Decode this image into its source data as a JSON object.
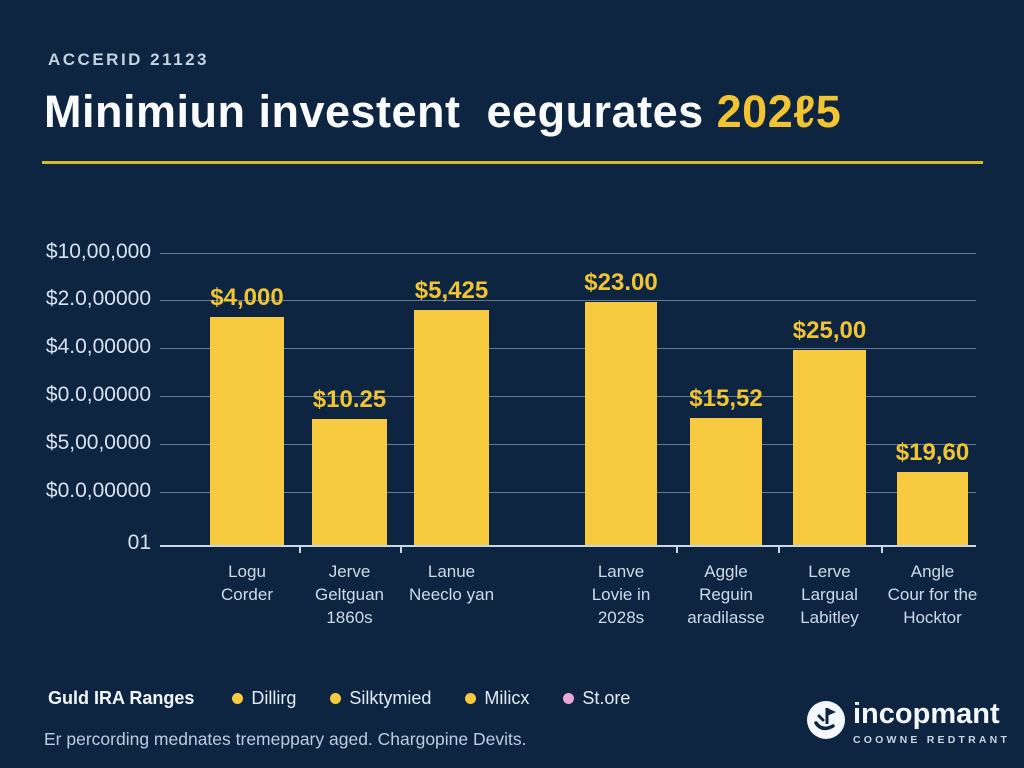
{
  "colors": {
    "background": "#0E2541",
    "bar": "#F8CA40",
    "accent_yellow": "#F2C431",
    "rule_gold": "#D9B92B",
    "legend_pink": "#E8A7D9",
    "text_light": "#D8E2EE"
  },
  "header": {
    "eyebrow": "ACCERID 21123",
    "title": "Minimiun investent  eegurates ",
    "title_accent": "202ℓ5"
  },
  "chart_data": {
    "type": "bar",
    "title": "Minimiun investent eegurates 202ℓ5",
    "xlabel": "",
    "ylabel": "",
    "grid": true,
    "legend_position": "bottom",
    "y_axis_tick_labels": [
      "$10,00,000",
      "$2.0,00000",
      "$4.0,00000",
      "$0.0,00000",
      "$5,00,0000",
      "$0.0,00000",
      "01"
    ],
    "bars": [
      {
        "value_label": "$4,000",
        "height_frac": 0.78,
        "category_lines": [
          "Logu",
          "Corder"
        ]
      },
      {
        "value_label": "$10.25",
        "height_frac": 0.43,
        "category_lines": [
          "Jerve",
          "Geltguan",
          "1860s"
        ]
      },
      {
        "value_label": "$5,425",
        "height_frac": 0.805,
        "category_lines": [
          "Lanue",
          "Neeclo yan"
        ]
      },
      {
        "value_label": "$23.00",
        "height_frac": 0.832,
        "category_lines": [
          "Lanve",
          "Lovie in",
          "2028s"
        ]
      },
      {
        "value_label": "$15,52",
        "height_frac": 0.435,
        "category_lines": [
          "Aggle",
          "Reguin",
          "aradilasse"
        ]
      },
      {
        "value_label": "$25,00",
        "height_frac": 0.668,
        "category_lines": [
          "Lerve",
          "Largual",
          "Labitley"
        ]
      },
      {
        "value_label": "$19,60",
        "height_frac": 0.25,
        "category_lines": [
          "Angle",
          "Cour for the",
          "Hocktor"
        ]
      }
    ]
  },
  "legend": {
    "title": "Guld IRA Ranges",
    "items": [
      {
        "label": "Dillirg",
        "color": "#F8CA40"
      },
      {
        "label": "Silktymied",
        "color": "#F8CA40"
      },
      {
        "label": "Milicx",
        "color": "#F8CA40"
      },
      {
        "label": "St.ore",
        "color": "#E8A7D9"
      }
    ]
  },
  "footer": {
    "note": "Er percording mednates tremeppary aged. Chargopine Devits.",
    "brand_name": "incopmant",
    "brand_subtitle": "COOWNE REDTRANT"
  }
}
